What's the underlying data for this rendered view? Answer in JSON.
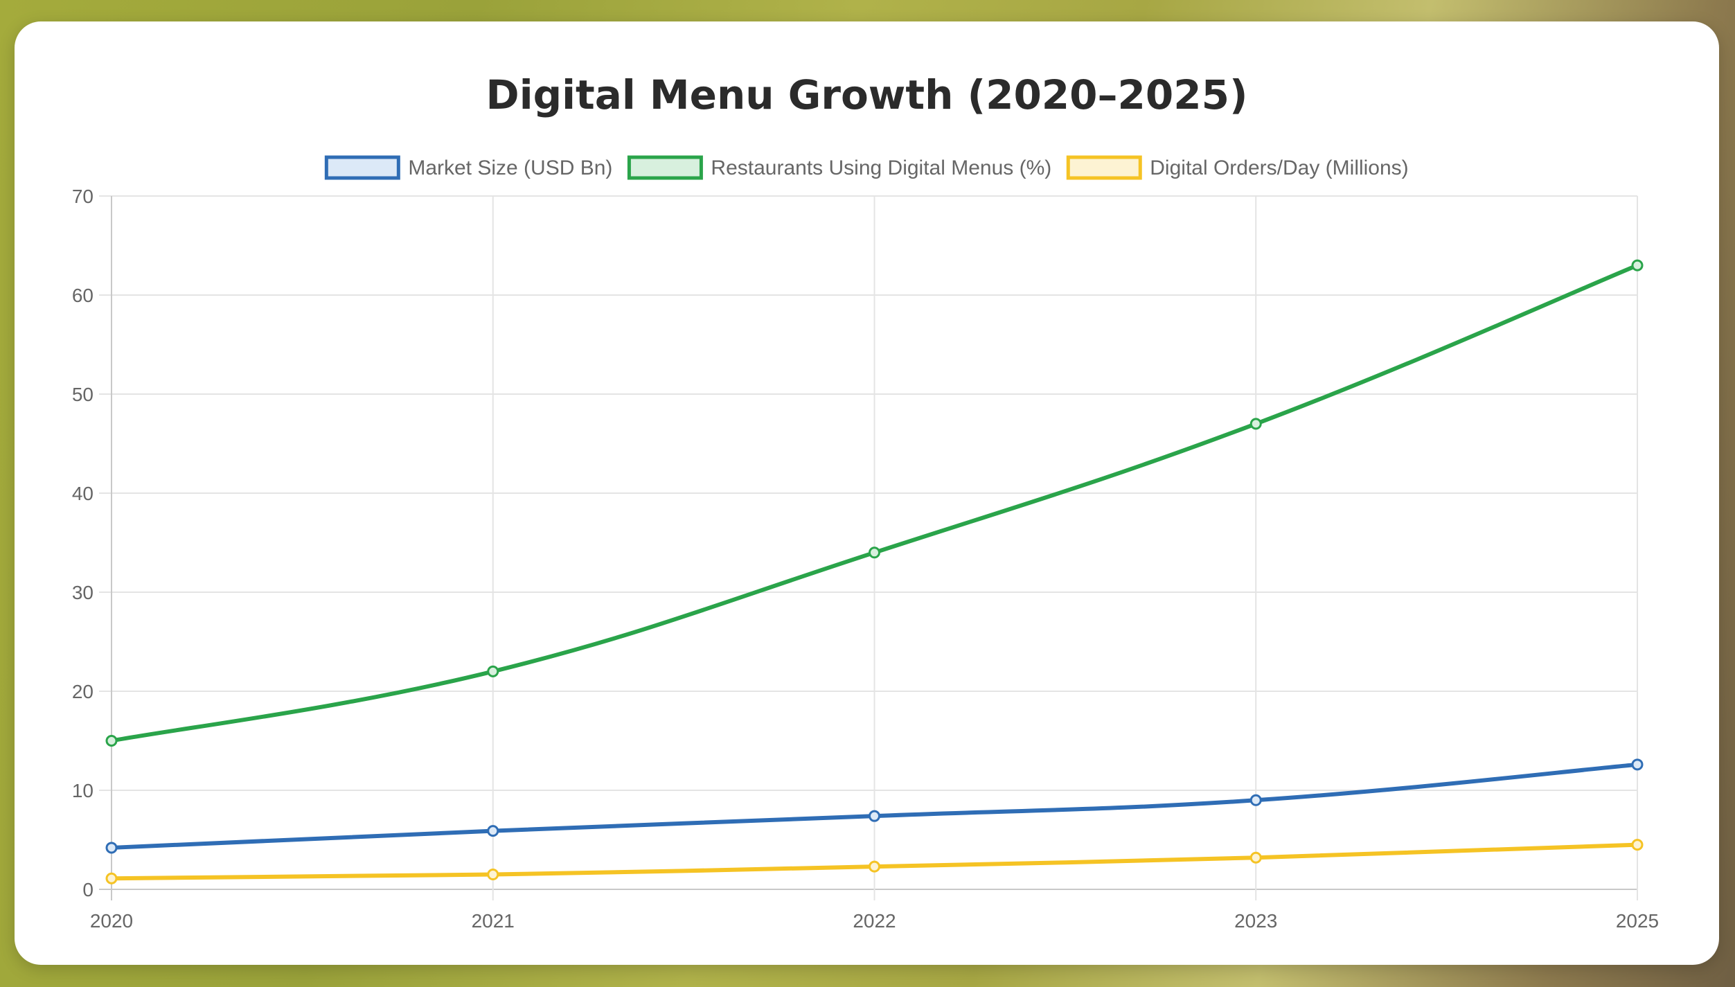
{
  "chart_data": {
    "type": "line",
    "title": "Digital Menu Growth (2020–2025)",
    "xlabel": "",
    "ylabel": "",
    "categories": [
      "2020",
      "2021",
      "2022",
      "2023",
      "2025"
    ],
    "ylim": [
      0,
      70
    ],
    "yticks": [
      0,
      10,
      20,
      30,
      40,
      50,
      60,
      70
    ],
    "grid": true,
    "legend_position": "top",
    "series": [
      {
        "name": "Market Size (USD Bn)",
        "color": "#2f6db5",
        "fill": "#dce9f7",
        "values": [
          4.2,
          5.9,
          7.4,
          9.0,
          12.6
        ]
      },
      {
        "name": "Restaurants Using Digital Menus (%)",
        "color": "#2aa44a",
        "fill": "#d8f0de",
        "values": [
          15,
          22,
          34,
          47,
          63
        ]
      },
      {
        "name": "Digital Orders/Day (Millions)",
        "color": "#f5c324",
        "fill": "#fdf3d3",
        "values": [
          1.1,
          1.5,
          2.3,
          3.2,
          4.5
        ]
      }
    ]
  }
}
